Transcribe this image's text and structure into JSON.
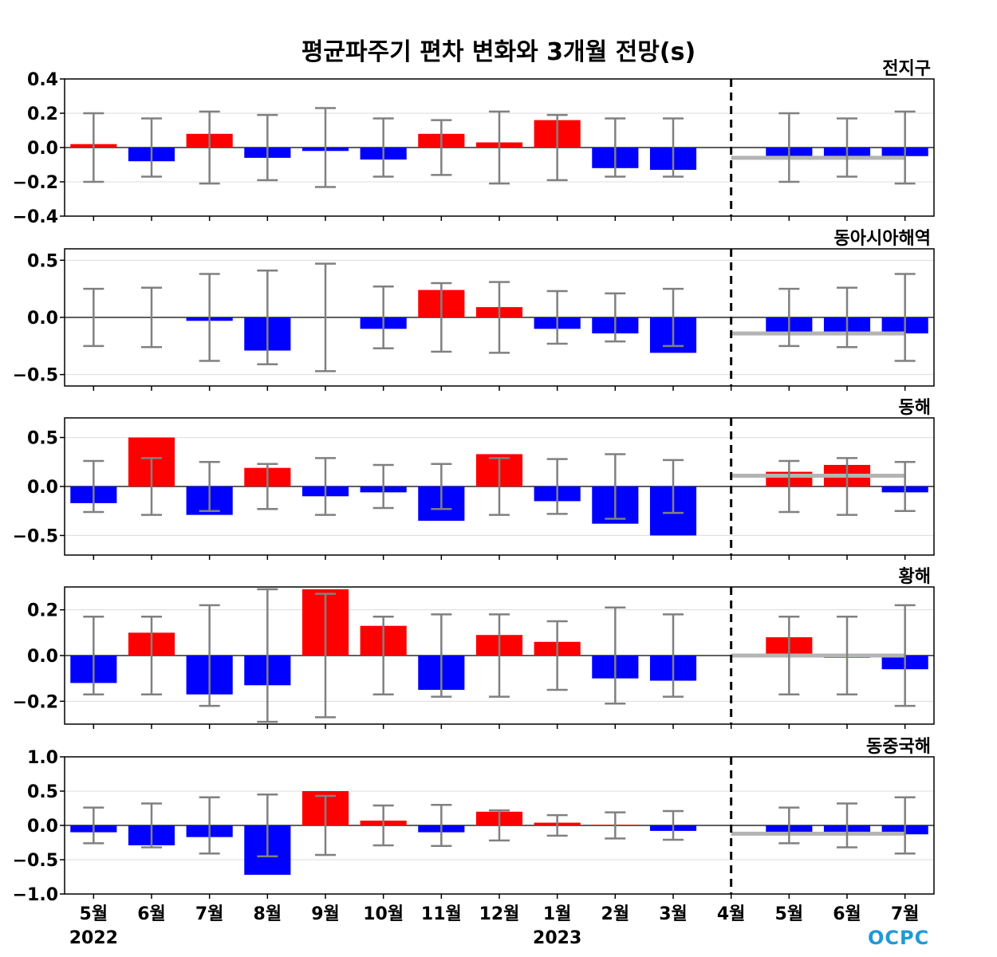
{
  "chart_data": {
    "type": "bar",
    "title": "평균파주기 편차 변화와 3개월 전망(s)",
    "categories": [
      "5월",
      "6월",
      "7월",
      "8월",
      "9월",
      "10월",
      "11월",
      "12월",
      "1월",
      "2월",
      "3월",
      "4월",
      "5월",
      "6월",
      "7월"
    ],
    "year_labels": [
      "2022",
      "2023"
    ],
    "forecast_divider_after": "3월",
    "grid": true,
    "colors": {
      "positive": "#ff0000",
      "negative": "#0000ff",
      "error_bar": "#808080",
      "forecast_line": "#b4b4b4",
      "divider": "#000000"
    },
    "panels": [
      {
        "name": "전지구",
        "ylim": [
          -0.4,
          0.4
        ],
        "yticks": [
          -0.4,
          -0.2,
          0.0,
          0.2,
          0.4
        ],
        "ytick_labels": [
          "−0.4",
          "−0.2",
          "0.0",
          "0.2",
          "0.4"
        ],
        "values": [
          0.02,
          -0.08,
          0.08,
          -0.06,
          -0.02,
          -0.07,
          0.08,
          0.03,
          0.16,
          -0.12,
          -0.13,
          0.0,
          -0.07,
          -0.05,
          -0.05
        ],
        "error": [
          0.2,
          0.17,
          0.21,
          0.19,
          0.23,
          0.17,
          0.16,
          0.21,
          0.19,
          0.17,
          0.17,
          0.0,
          0.2,
          0.17,
          0.21
        ],
        "forecast_mean": -0.06
      },
      {
        "name": "동아시아해역",
        "ylim": [
          -0.6,
          0.6
        ],
        "yticks": [
          -0.5,
          0.0,
          0.5
        ],
        "ytick_labels": [
          "−0.5",
          "0.0",
          "0.5"
        ],
        "values": [
          0.0,
          0.0,
          -0.03,
          -0.29,
          0.0,
          -0.1,
          0.24,
          0.09,
          -0.1,
          -0.14,
          -0.31,
          0.0,
          -0.14,
          -0.13,
          -0.14
        ],
        "error": [
          0.25,
          0.26,
          0.38,
          0.41,
          0.47,
          0.27,
          0.3,
          0.31,
          0.23,
          0.21,
          0.25,
          0.0,
          0.25,
          0.26,
          0.38
        ],
        "forecast_mean": -0.14
      },
      {
        "name": "동해",
        "ylim": [
          -0.7,
          0.7
        ],
        "yticks": [
          -0.5,
          0.0,
          0.5
        ],
        "ytick_labels": [
          "−0.5",
          "0.0",
          "0.5"
        ],
        "values": [
          -0.17,
          0.5,
          -0.29,
          0.19,
          -0.1,
          -0.06,
          -0.35,
          0.33,
          -0.15,
          -0.38,
          -0.5,
          0.0,
          0.15,
          0.22,
          -0.06
        ],
        "error": [
          0.26,
          0.29,
          0.25,
          0.23,
          0.29,
          0.22,
          0.23,
          0.29,
          0.28,
          0.33,
          0.27,
          0.0,
          0.26,
          0.29,
          0.25
        ],
        "forecast_mean": 0.11
      },
      {
        "name": "황해",
        "ylim": [
          -0.3,
          0.3
        ],
        "yticks": [
          -0.2,
          0.0,
          0.2
        ],
        "ytick_labels": [
          "−0.2",
          "0.0",
          "0.2"
        ],
        "values": [
          -0.12,
          0.1,
          -0.17,
          -0.13,
          0.29,
          0.13,
          -0.15,
          0.09,
          0.06,
          -0.1,
          -0.11,
          0.0,
          0.08,
          -0.01,
          -0.06
        ],
        "error": [
          0.17,
          0.17,
          0.22,
          0.29,
          0.27,
          0.17,
          0.18,
          0.18,
          0.15,
          0.21,
          0.18,
          0.0,
          0.17,
          0.17,
          0.22
        ],
        "forecast_mean": 0.0
      },
      {
        "name": "동중국해",
        "ylim": [
          -1.0,
          1.0
        ],
        "yticks": [
          -1.0,
          -0.5,
          0.0,
          0.5,
          1.0
        ],
        "ytick_labels": [
          "−1.0",
          "−0.5",
          "0.0",
          "0.5",
          "1.0"
        ],
        "values": [
          -0.1,
          -0.29,
          -0.17,
          -0.72,
          0.5,
          0.07,
          -0.1,
          0.2,
          0.04,
          0.01,
          -0.08,
          0.0,
          -0.1,
          -0.1,
          -0.13
        ],
        "error": [
          0.26,
          0.32,
          0.41,
          0.45,
          0.43,
          0.29,
          0.3,
          0.22,
          0.15,
          0.19,
          0.21,
          0.0,
          0.26,
          0.32,
          0.41
        ],
        "forecast_mean": -0.12
      }
    ]
  },
  "logo": {
    "text": "OCPC"
  }
}
